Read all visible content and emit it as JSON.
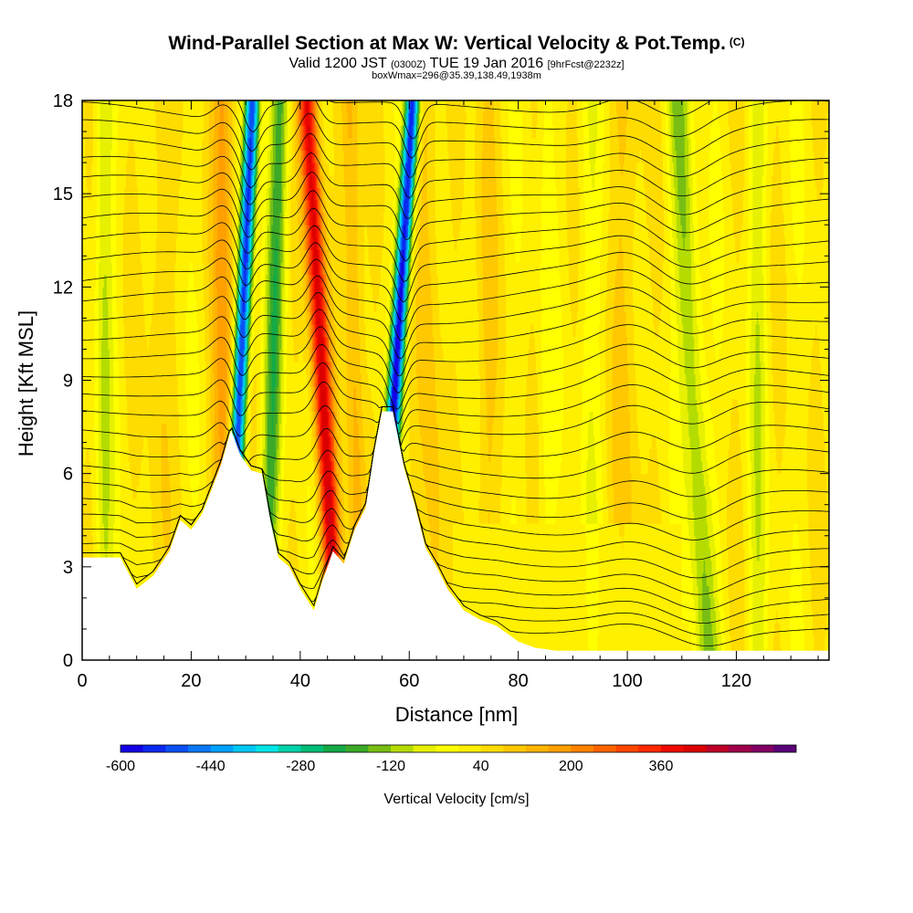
{
  "header": {
    "title": "Wind-Parallel Section at Max W: Vertical Velocity & Pot.Temp.",
    "title_mark": "(C)",
    "valid_prefix": "Valid 1200 JST",
    "valid_utc": "(0300Z)",
    "valid_date": "TUE 19 Jan 2016",
    "forecast": "[9hrFcst@2232z]",
    "box_info": "boxWmax=296@35.39,138.49,1938m"
  },
  "chart_data": {
    "type": "heatmap",
    "xlabel": "Distance [nm]",
    "ylabel": "Height [Kft MSL]",
    "xlim": [
      0,
      137
    ],
    "ylim": [
      0,
      18
    ],
    "x_ticks": [
      "0",
      "20",
      "40",
      "60",
      "80",
      "100",
      "120"
    ],
    "y_ticks": [
      "0",
      "3",
      "6",
      "9",
      "12",
      "15",
      "18"
    ],
    "colorbar": {
      "label": "Vertical Velocity [cm/s]",
      "tick_labels": [
        "-600",
        "-440",
        "-280",
        "-120",
        "40",
        "200",
        "360"
      ],
      "colors": [
        "#1400e6",
        "#0a28f0",
        "#0a50f5",
        "#0a78f5",
        "#00a0ff",
        "#00c8f5",
        "#00e6e6",
        "#00d2aa",
        "#00be78",
        "#14aa46",
        "#3caa28",
        "#78be14",
        "#b4dc00",
        "#e6f000",
        "#ffff00",
        "#fff000",
        "#ffdc00",
        "#ffc800",
        "#ffb400",
        "#ffa000",
        "#ff8200",
        "#ff6400",
        "#ff4600",
        "#ff2800",
        "#f00a00",
        "#dc0000",
        "#be0028",
        "#a0004b",
        "#820064",
        "#5a0078"
      ]
    },
    "updrafts": [
      {
        "x": 44,
        "w_cm_s": 400
      },
      {
        "x": 26,
        "w_cm_s": 150
      },
      {
        "x": 50,
        "w_cm_s": 120
      },
      {
        "x": 64,
        "w_cm_s": 80
      },
      {
        "x": 100,
        "w_cm_s": 60
      }
    ],
    "downdrafts": [
      {
        "x": 29,
        "w_cm_s": -560
      },
      {
        "x": 57.5,
        "w_cm_s": -600
      },
      {
        "x": 35,
        "w_cm_s": -200
      },
      {
        "x": 112,
        "w_cm_s": -150
      },
      {
        "x": 4,
        "w_cm_s": -100
      }
    ],
    "terrain": [
      [
        0,
        3.3
      ],
      [
        7,
        3.3
      ],
      [
        10,
        2.3
      ],
      [
        13,
        2.7
      ],
      [
        16,
        3.5
      ],
      [
        18,
        4.5
      ],
      [
        20,
        4.2
      ],
      [
        22,
        4.7
      ],
      [
        24,
        5.6
      ],
      [
        25.5,
        6.3
      ],
      [
        27.3,
        7.4
      ],
      [
        29,
        6.6
      ],
      [
        31,
        6.1
      ],
      [
        33,
        6.0
      ],
      [
        34.5,
        4.5
      ],
      [
        36,
        3.3
      ],
      [
        38,
        3.0
      ],
      [
        40,
        2.3
      ],
      [
        42.5,
        1.6
      ],
      [
        44,
        2.5
      ],
      [
        46,
        3.5
      ],
      [
        48,
        3.1
      ],
      [
        50,
        4.2
      ],
      [
        52,
        4.9
      ],
      [
        53.5,
        6.6
      ],
      [
        55,
        8.0
      ],
      [
        57,
        8.0
      ],
      [
        59,
        6.2
      ],
      [
        61,
        5.0
      ],
      [
        63,
        3.6
      ],
      [
        65,
        3.0
      ],
      [
        67,
        2.3
      ],
      [
        70,
        1.6
      ],
      [
        73,
        1.3
      ],
      [
        76,
        1.1
      ],
      [
        80,
        0.6
      ],
      [
        83,
        0.4
      ],
      [
        87,
        0.3
      ],
      [
        137,
        0.3
      ]
    ]
  }
}
